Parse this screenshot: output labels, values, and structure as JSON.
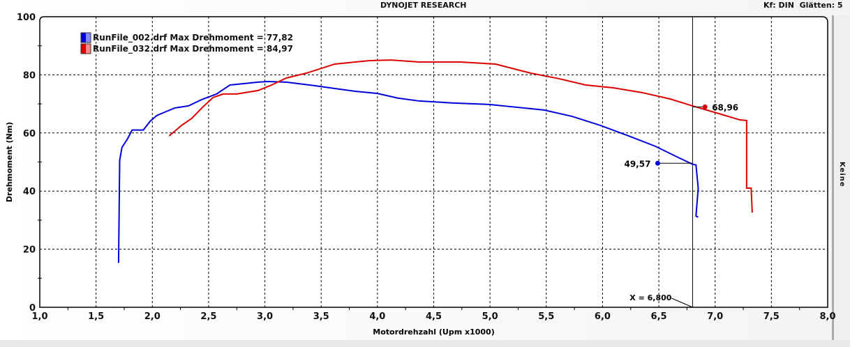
{
  "header": {
    "title": "DYNOJET RESEARCH",
    "settings": "Kf: DIN  Glätten: 5"
  },
  "side_label": "Keine",
  "chart_data": {
    "type": "line",
    "title": "DYNOJET RESEARCH",
    "xlabel": "Motordrehzahl (Upm x1000)",
    "ylabel": "Drehmoment (Nm)",
    "xlim": [
      1.0,
      8.0
    ],
    "ylim": [
      0,
      100
    ],
    "xticks": [
      "1,0",
      "1,5",
      "2,0",
      "2,5",
      "3,0",
      "3,5",
      "4,0",
      "4,5",
      "5,0",
      "5,5",
      "6,0",
      "6,5",
      "7,0",
      "7,5",
      "8,0"
    ],
    "yticks": [
      "0",
      "20",
      "40",
      "60",
      "80",
      "100"
    ],
    "grid": true,
    "legend": "top-left",
    "cursor": {
      "x": 6.8,
      "label": "X = 6,800"
    },
    "series": [
      {
        "name": "RunFile_002.drf Max Drehmoment = 77,82",
        "color": "#0000dd",
        "marker": {
          "x": 6.49,
          "y": 49.57,
          "label": "49,57"
        },
        "points": [
          [
            1.7,
            15.3
          ],
          [
            1.71,
            50.6
          ],
          [
            1.73,
            55
          ],
          [
            1.78,
            58
          ],
          [
            1.82,
            61
          ],
          [
            1.92,
            61
          ],
          [
            1.98,
            64
          ],
          [
            2.04,
            66
          ],
          [
            2.1,
            67
          ],
          [
            2.2,
            68.6
          ],
          [
            2.32,
            69.3
          ],
          [
            2.44,
            71.5
          ],
          [
            2.57,
            73.4
          ],
          [
            2.69,
            76.5
          ],
          [
            2.82,
            77
          ],
          [
            2.94,
            77.5
          ],
          [
            3.03,
            77.7
          ],
          [
            3.19,
            77.5
          ],
          [
            3.44,
            76.3
          ],
          [
            3.62,
            75.3
          ],
          [
            3.81,
            74.3
          ],
          [
            4.0,
            73.6
          ],
          [
            4.18,
            72
          ],
          [
            4.37,
            71
          ],
          [
            4.68,
            70.3
          ],
          [
            4.99,
            69.8
          ],
          [
            5.3,
            68.6
          ],
          [
            5.48,
            67.9
          ],
          [
            5.73,
            65.7
          ],
          [
            5.98,
            62.6
          ],
          [
            6.23,
            59
          ],
          [
            6.47,
            55.4
          ],
          [
            6.66,
            51.8
          ],
          [
            6.8,
            49.2
          ],
          [
            6.83,
            49
          ],
          [
            6.85,
            41
          ],
          [
            6.83,
            31.4
          ],
          [
            6.85,
            31
          ]
        ]
      },
      {
        "name": "RunFile_032.drf Max Drehmoment = 84,97",
        "color": "#dd0000",
        "marker": {
          "x": 6.91,
          "y": 68.96,
          "label": "68,96"
        },
        "points": [
          [
            2.15,
            59
          ],
          [
            2.26,
            62.6
          ],
          [
            2.35,
            65
          ],
          [
            2.44,
            68.6
          ],
          [
            2.54,
            72.2
          ],
          [
            2.63,
            73.4
          ],
          [
            2.75,
            73.4
          ],
          [
            2.94,
            74.6
          ],
          [
            3.06,
            76.5
          ],
          [
            3.19,
            78.9
          ],
          [
            3.37,
            80.6
          ],
          [
            3.62,
            83.7
          ],
          [
            3.93,
            84.9
          ],
          [
            4.12,
            85.1
          ],
          [
            4.37,
            84.4
          ],
          [
            4.74,
            84.4
          ],
          [
            5.05,
            83.7
          ],
          [
            5.36,
            80.6
          ],
          [
            5.61,
            78.7
          ],
          [
            5.85,
            76.5
          ],
          [
            6.1,
            75.5
          ],
          [
            6.35,
            73.9
          ],
          [
            6.6,
            71.7
          ],
          [
            6.8,
            69.3
          ],
          [
            7.03,
            66.7
          ],
          [
            7.22,
            64.5
          ],
          [
            7.28,
            64.3
          ],
          [
            7.28,
            41
          ],
          [
            7.32,
            41
          ],
          [
            7.33,
            32.6
          ]
        ]
      }
    ]
  }
}
